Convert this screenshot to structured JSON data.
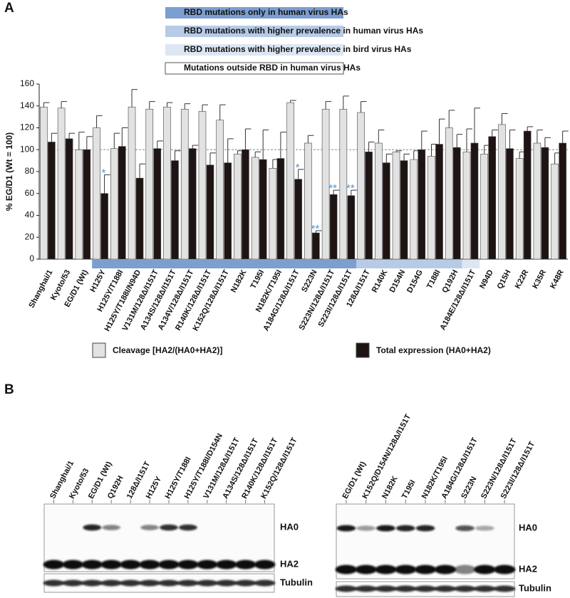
{
  "panel_labels": [
    "A",
    "B"
  ],
  "chart_data": {
    "type": "bar",
    "ylabel": "% EG/D1 (Wt = 100)",
    "ylim": [
      0,
      160
    ],
    "yticks": [
      0,
      20,
      40,
      60,
      80,
      100,
      120,
      140,
      160
    ],
    "reference_line": 100,
    "categories": [
      "Shanghai/1",
      "Kyoto/53",
      "EG/D1 (Wt)",
      "H125Y",
      "H125Y/T188I",
      "H125Y/T188I/N94D",
      "V131M/128Δ/I151T",
      "A134S/128Δ/I151T",
      "A134V/128Δ/I151T",
      "R140K/128Δ/I151T",
      "K152Q/128Δ/I151T",
      "N182K",
      "T195I",
      "N182K/T195I",
      "A184G/128Δ/I151T",
      "S223N",
      "S223N/128Δ/I151T",
      "S223I/128Δ/I151T",
      "128Δ/I151T",
      "R140K",
      "D154N",
      "D154G",
      "T188I",
      "Q192H",
      "A184E/128Δ/I151T",
      "N94D",
      "Q15H",
      "K22R",
      "K35R",
      "K48R"
    ],
    "series": [
      {
        "name": "Cleavage [HA2/(HA0+HA2)]",
        "color": "#e2e2e2",
        "values": [
          139,
          138,
          100,
          120,
          101,
          139,
          137,
          139,
          137,
          135,
          127,
          96,
          93,
          83,
          143,
          106,
          137,
          137,
          134,
          106,
          98,
          91,
          94,
          120,
          98,
          96,
          123,
          92,
          106,
          87
        ],
        "errors": [
          4,
          6,
          16,
          11,
          14,
          16,
          7,
          4,
          5,
          6,
          14,
          3,
          5,
          8,
          2,
          7,
          7,
          12,
          10,
          12,
          1,
          8,
          11,
          16,
          21,
          8,
          10,
          6,
          12,
          10
        ]
      },
      {
        "name": "Total expression (HA0+HA2)",
        "color": "#1e1414",
        "values": [
          107,
          110,
          100,
          60,
          103,
          74,
          101,
          90,
          101,
          86,
          88,
          100,
          91,
          92,
          73,
          24,
          59,
          58,
          98,
          88,
          90,
          100,
          105,
          102,
          106,
          112,
          101,
          117,
          102,
          106
        ],
        "errors": [
          8,
          5,
          12,
          17,
          17,
          13,
          7,
          9,
          3,
          11,
          22,
          19,
          27,
          24,
          9,
          2,
          4,
          5,
          9,
          8,
          6,
          17,
          23,
          12,
          32,
          6,
          17,
          4,
          9,
          11
        ]
      }
    ],
    "annotations": [
      {
        "category": "H125Y",
        "text": "*"
      },
      {
        "category": "A184G/128Δ/I151T",
        "text": "*"
      },
      {
        "category": "S223N",
        "text": "**"
      },
      {
        "category": "S223N/128Δ/I151T",
        "text": "**"
      },
      {
        "category": "S223I/128Δ/I151T",
        "text": "**"
      }
    ],
    "annotation_color": "#5b8fd0",
    "bands": [
      {
        "name": "RBD mutations only in human virus HAs",
        "color": "#7a9fd0",
        "from": "H125Y",
        "to": "S223I/128Δ/I151T"
      },
      {
        "name": "RBD mutations with higher prevalence in human virus HAs",
        "color": "#b7cbe6",
        "from": "128Δ/I151T",
        "to": "Q192H"
      },
      {
        "name": "RBD mutations with higher prevalence in bird virus HAs",
        "color": "#dde7f4",
        "from": "A184E/128Δ/I151T",
        "to": "A184E/128Δ/I151T"
      },
      {
        "name": "Mutations outside RBD in human virus HAs",
        "color": "#ffffff",
        "from": "N94D",
        "to": "K48R"
      }
    ]
  },
  "blot": {
    "panels": [
      {
        "lanes": [
          "Shanghai/1",
          "Kyoto/53",
          "EG/D1 (Wt)",
          "Q192H",
          "128Δ/I151T",
          "H125Y",
          "H125Y/T188I",
          "H125Y/T188I/D154N",
          "V131M/128Δ/I151T",
          "A134S/128Δ/I151T",
          "R140K/128Δ/I151T",
          "K152Q/128Δ/I151T"
        ],
        "bands": [
          "HA0",
          "HA2",
          "Tubulin"
        ]
      },
      {
        "lanes": [
          "EG/D1 (Wt)",
          "K152Q/D154N/128Δ/I151T",
          "N182K",
          "T195I",
          "N182K/T195I",
          "A184G/128Δ/I151T",
          "S223N",
          "S223N/128Δ/I151T",
          "S223I/128Δ/I151T"
        ],
        "bands": [
          "HA0",
          "HA2",
          "Tubulin"
        ]
      }
    ]
  }
}
